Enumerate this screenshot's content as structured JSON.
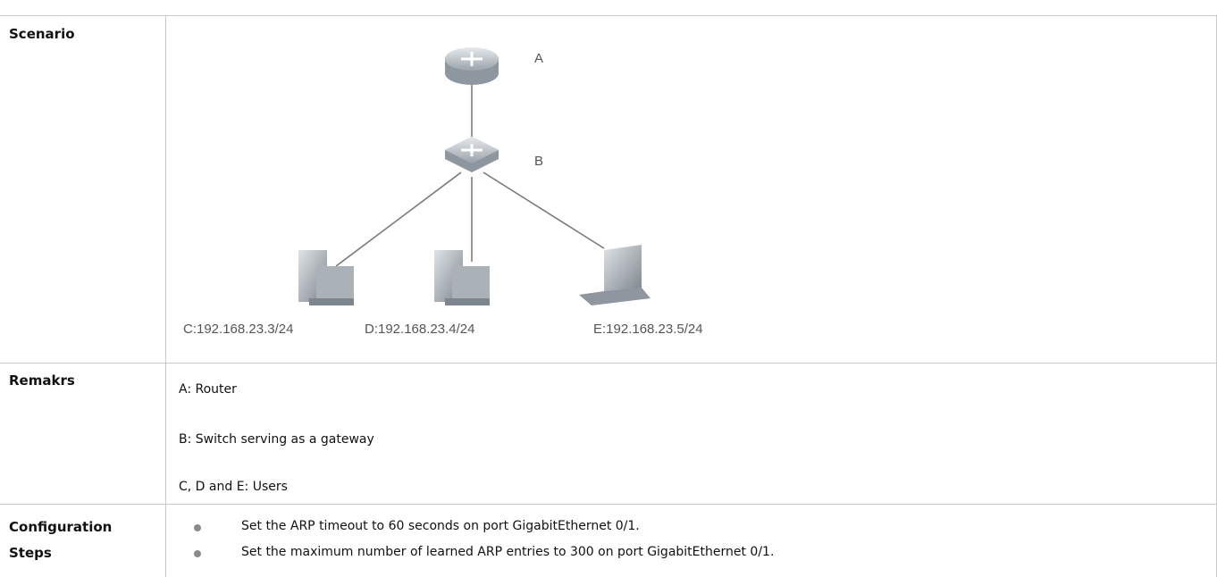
{
  "table": {
    "rows": [
      {
        "label": "Scenario"
      },
      {
        "label": "Remakrs",
        "lines": [
          "A: Router",
          "B: Switch serving as a gateway",
          "C, D and E: Users"
        ]
      },
      {
        "label": "Configuration Steps",
        "items": [
          "Set the ARP timeout to 60 seconds on port GigabitEthernet 0/1.",
          "Set the maximum number of learned ARP entries to 300 on port GigabitEthernet 0/1."
        ]
      }
    ]
  },
  "diagram": {
    "nodes": [
      {
        "label": "A"
      },
      {
        "label": "B"
      },
      {
        "label": "C:192.168.23.3/24"
      },
      {
        "label": "D:192.168.23.4/24"
      },
      {
        "label": "E:192.168.23.5/24"
      }
    ]
  }
}
